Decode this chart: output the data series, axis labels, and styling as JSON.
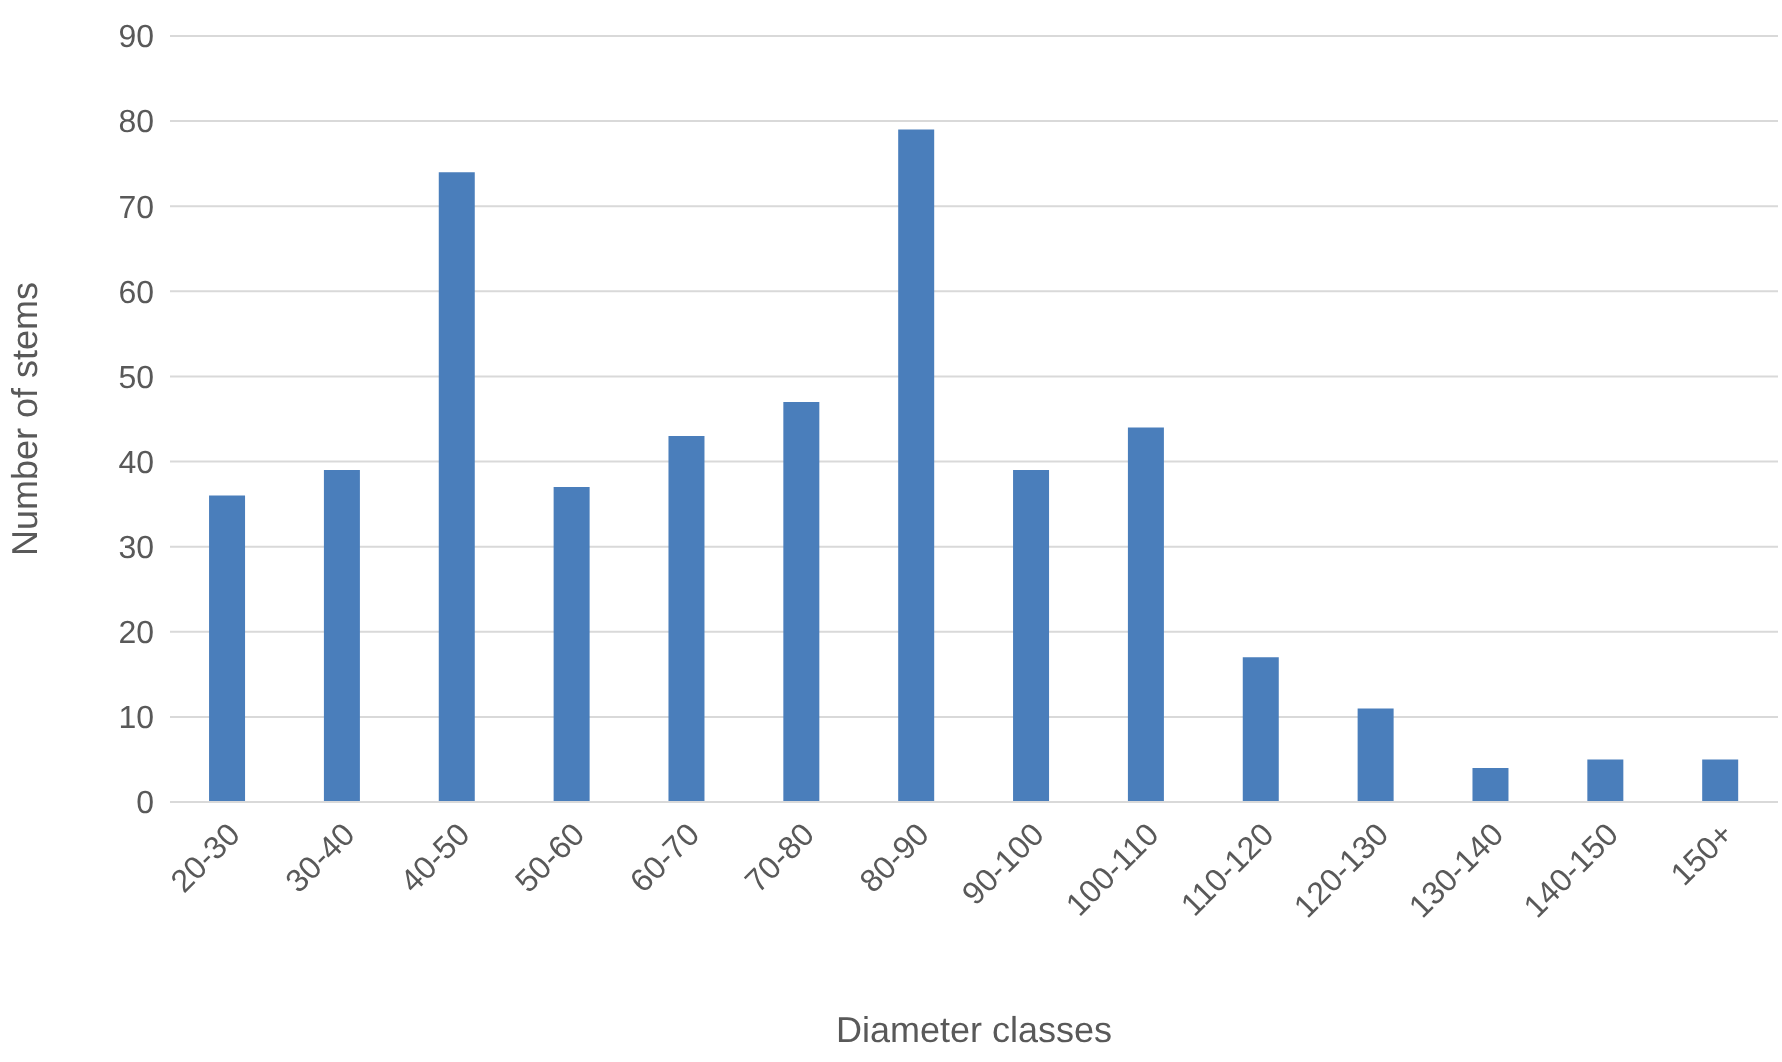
{
  "chart_data": {
    "type": "bar",
    "xlabel": "Diameter classes",
    "ylabel": "Number of stems",
    "categories": [
      "20-30",
      "30-40",
      "40-50",
      "50-60",
      "60-70",
      "70-80",
      "80-90",
      "90-100",
      "100-110",
      "110-120",
      "120-130",
      "130-140",
      "140-150",
      "150+"
    ],
    "values": [
      36,
      39,
      74,
      37,
      43,
      47,
      79,
      39,
      44,
      17,
      11,
      4,
      5,
      5
    ],
    "color": "#4a7ebb",
    "ylim": [
      0,
      90
    ],
    "yticks": [
      0,
      10,
      20,
      30,
      40,
      50,
      60,
      70,
      80,
      90
    ],
    "grid": "y"
  }
}
